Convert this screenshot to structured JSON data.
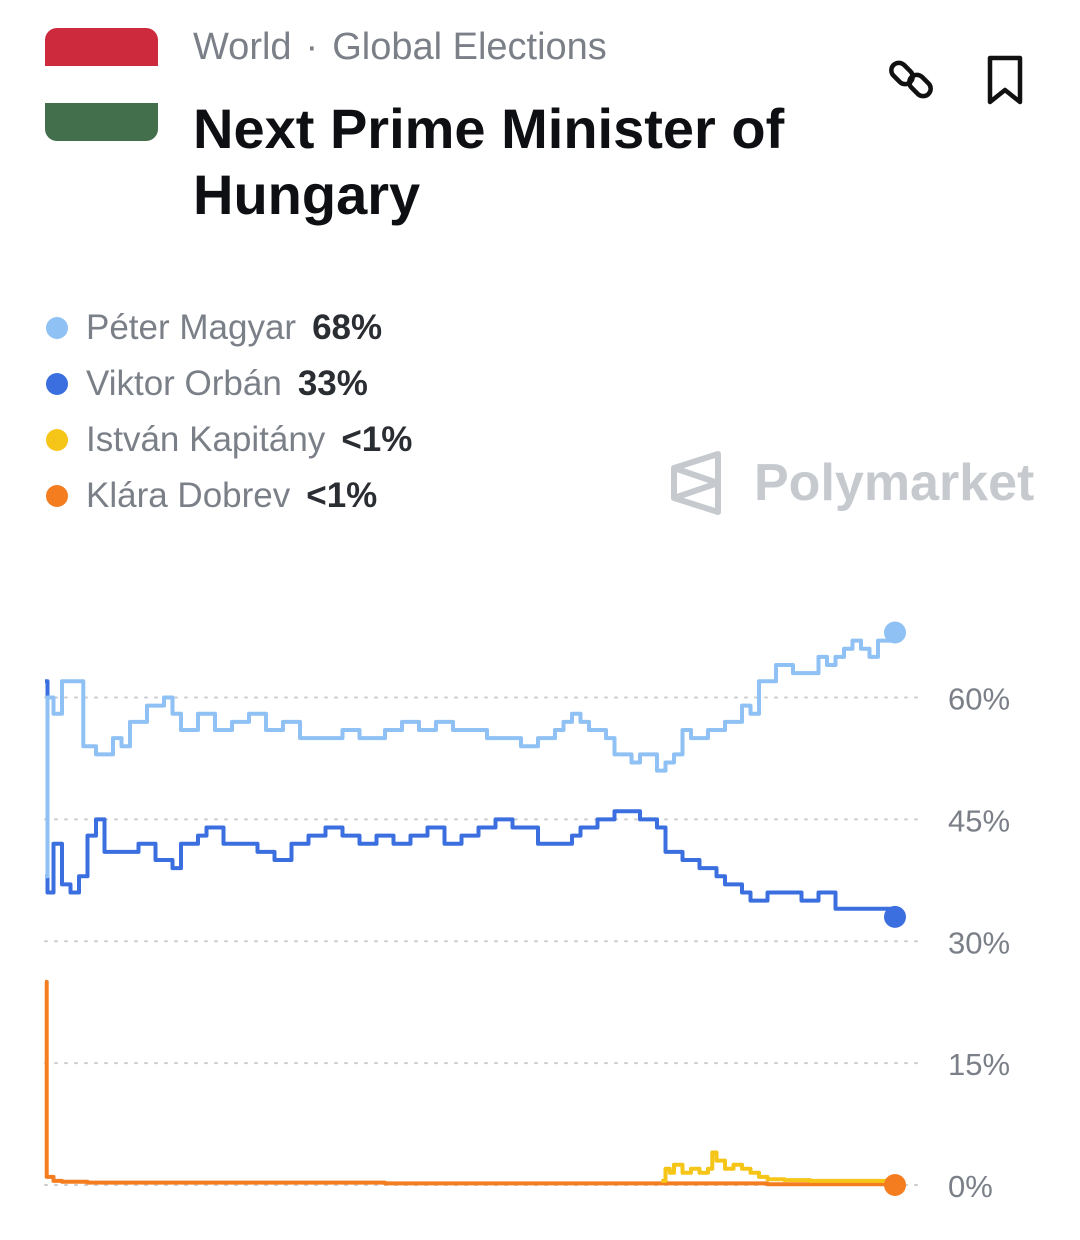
{
  "header": {
    "breadcrumb": [
      "World",
      "Global Elections"
    ],
    "separator": "·",
    "title": "Next Prime Minister of Hungary",
    "flag_colors": [
      "#cd2a3e",
      "#ffffff",
      "#436f4d"
    ]
  },
  "actions": {
    "link_icon": "link-icon",
    "bookmark_icon": "bookmark-icon"
  },
  "watermark": {
    "text": "Polymarket",
    "icon": "polymarket-logo-icon"
  },
  "legend": [
    {
      "name": "Péter Magyar",
      "value": "68%",
      "color": "#8fc1f4"
    },
    {
      "name": "Viktor Orbán",
      "value": "33%",
      "color": "#3b6fe0"
    },
    {
      "name": "István Kapitány",
      "value": "<1%",
      "color": "#f5c518"
    },
    {
      "name": "Klára Dobrev",
      "value": "<1%",
      "color": "#f47d20"
    }
  ],
  "chart_data": {
    "type": "line",
    "title": "",
    "xlabel": "",
    "ylabel": "",
    "ylim": [
      0,
      72
    ],
    "y_ticks": [
      0,
      15,
      30,
      45,
      60
    ],
    "y_tick_labels": [
      "0%",
      "15%",
      "30%",
      "45%",
      "60%"
    ],
    "grid": true,
    "grid_style": "dotted",
    "y_axis_position": "right",
    "x_range": [
      0,
      100
    ],
    "series": [
      {
        "name": "Péter Magyar",
        "color": "#8fc1f4",
        "end_marker": true,
        "points": [
          [
            0,
            38
          ],
          [
            0.3,
            60
          ],
          [
            1,
            58
          ],
          [
            2,
            62
          ],
          [
            4,
            62
          ],
          [
            4.5,
            54
          ],
          [
            6,
            53
          ],
          [
            8,
            55
          ],
          [
            9,
            54
          ],
          [
            10,
            57
          ],
          [
            12,
            59
          ],
          [
            14,
            60
          ],
          [
            15,
            58
          ],
          [
            16,
            56
          ],
          [
            18,
            58
          ],
          [
            20,
            56
          ],
          [
            22,
            57
          ],
          [
            24,
            58
          ],
          [
            26,
            56
          ],
          [
            28,
            57
          ],
          [
            30,
            55
          ],
          [
            33,
            55
          ],
          [
            35,
            56
          ],
          [
            37,
            55
          ],
          [
            40,
            56
          ],
          [
            42,
            57
          ],
          [
            44,
            56
          ],
          [
            46,
            57
          ],
          [
            48,
            56
          ],
          [
            50,
            56
          ],
          [
            52,
            55
          ],
          [
            54,
            55
          ],
          [
            56,
            54
          ],
          [
            58,
            55
          ],
          [
            60,
            56
          ],
          [
            61,
            57
          ],
          [
            62,
            58
          ],
          [
            63,
            57
          ],
          [
            64,
            56
          ],
          [
            66,
            55
          ],
          [
            67,
            53
          ],
          [
            69,
            52
          ],
          [
            70,
            53
          ],
          [
            72,
            51
          ],
          [
            73,
            52
          ],
          [
            74,
            53
          ],
          [
            75,
            56
          ],
          [
            76,
            55
          ],
          [
            78,
            56
          ],
          [
            80,
            57
          ],
          [
            82,
            59
          ],
          [
            83,
            58
          ],
          [
            84,
            62
          ],
          [
            85,
            62
          ],
          [
            86,
            64
          ],
          [
            88,
            63
          ],
          [
            90,
            63
          ],
          [
            91,
            65
          ],
          [
            92,
            64
          ],
          [
            93,
            65
          ],
          [
            94,
            66
          ],
          [
            95,
            67
          ],
          [
            96,
            66
          ],
          [
            97,
            65
          ],
          [
            98,
            67
          ],
          [
            100,
            68
          ]
        ]
      },
      {
        "name": "Viktor Orbán",
        "color": "#3b6fe0",
        "end_marker": true,
        "points": [
          [
            0,
            62
          ],
          [
            0.3,
            36
          ],
          [
            1,
            42
          ],
          [
            2,
            37
          ],
          [
            3,
            36
          ],
          [
            4,
            38
          ],
          [
            5,
            43
          ],
          [
            6,
            45
          ],
          [
            7,
            41
          ],
          [
            9,
            41
          ],
          [
            11,
            42
          ],
          [
            13,
            40
          ],
          [
            15,
            39
          ],
          [
            16,
            42
          ],
          [
            18,
            43
          ],
          [
            19,
            44
          ],
          [
            21,
            42
          ],
          [
            23,
            42
          ],
          [
            25,
            41
          ],
          [
            27,
            40
          ],
          [
            29,
            42
          ],
          [
            31,
            43
          ],
          [
            33,
            44
          ],
          [
            35,
            43
          ],
          [
            37,
            42
          ],
          [
            39,
            43
          ],
          [
            41,
            42
          ],
          [
            43,
            43
          ],
          [
            45,
            44
          ],
          [
            47,
            42
          ],
          [
            49,
            43
          ],
          [
            51,
            44
          ],
          [
            53,
            45
          ],
          [
            55,
            44
          ],
          [
            57,
            44
          ],
          [
            58,
            42
          ],
          [
            60,
            42
          ],
          [
            62,
            43
          ],
          [
            63,
            44
          ],
          [
            65,
            45
          ],
          [
            67,
            46
          ],
          [
            68,
            46
          ],
          [
            70,
            45
          ],
          [
            72,
            44
          ],
          [
            73,
            41
          ],
          [
            75,
            40
          ],
          [
            77,
            39
          ],
          [
            79,
            38
          ],
          [
            80,
            37
          ],
          [
            82,
            36
          ],
          [
            83,
            35
          ],
          [
            85,
            36
          ],
          [
            87,
            36
          ],
          [
            89,
            35
          ],
          [
            91,
            36
          ],
          [
            93,
            34
          ],
          [
            95,
            34
          ],
          [
            97,
            34
          ],
          [
            98,
            34
          ],
          [
            100,
            33
          ]
        ]
      },
      {
        "name": "István Kapitány",
        "color": "#f5c518",
        "end_marker": false,
        "points": [
          [
            72.5,
            0.5
          ],
          [
            73,
            2
          ],
          [
            73.5,
            1.5
          ],
          [
            74,
            2.5
          ],
          [
            75,
            1.5
          ],
          [
            76,
            2
          ],
          [
            77,
            1.5
          ],
          [
            78,
            2
          ],
          [
            78.5,
            4
          ],
          [
            79,
            3
          ],
          [
            80,
            2
          ],
          [
            81,
            2.5
          ],
          [
            82,
            2
          ],
          [
            83,
            1.5
          ],
          [
            84,
            1
          ],
          [
            85,
            0.7
          ],
          [
            87,
            0.6
          ],
          [
            90,
            0.5
          ],
          [
            93,
            0.5
          ],
          [
            100,
            0.5
          ]
        ]
      },
      {
        "name": "Klára Dobrev",
        "color": "#f47d20",
        "end_marker": true,
        "points": [
          [
            0,
            25
          ],
          [
            0.2,
            1
          ],
          [
            1,
            0.5
          ],
          [
            2,
            0.4
          ],
          [
            5,
            0.3
          ],
          [
            10,
            0.3
          ],
          [
            15,
            0.3
          ],
          [
            20,
            0.3
          ],
          [
            30,
            0.3
          ],
          [
            35,
            0.3
          ],
          [
            40,
            0.2
          ],
          [
            50,
            0.2
          ],
          [
            60,
            0.2
          ],
          [
            70,
            0.2
          ],
          [
            80,
            0.2
          ],
          [
            85,
            0.1
          ],
          [
            90,
            0.1
          ],
          [
            100,
            0
          ]
        ]
      }
    ]
  }
}
